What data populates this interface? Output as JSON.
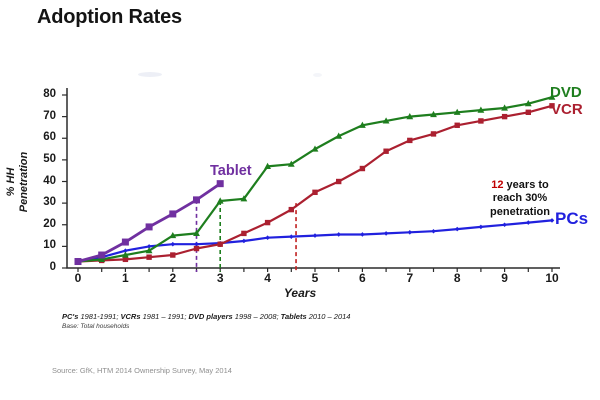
{
  "title": "Adoption Rates",
  "colors": {
    "dvd": "#1e7e1e",
    "vcr": "#ab2030",
    "tablet": "#7030a0",
    "pcs": "#2121de",
    "annotation_highlight": "#c00000",
    "axis": "#2b2b2b",
    "source_text": "#8f8f8f"
  },
  "chart_data": {
    "type": "line",
    "title": "Adoption Rates",
    "xlabel": "Years",
    "ylabel": "% HH Penetration",
    "ylabel_line1": "% HH",
    "ylabel_line2": "Penetration",
    "xlim": [
      0,
      10
    ],
    "ylim": [
      0,
      80
    ],
    "grid": false,
    "x_tick_labels": [
      "0",
      "1",
      "2",
      "3",
      "4",
      "5",
      "6",
      "7",
      "8",
      "9",
      "10"
    ],
    "y_tick_labels": [
      "0",
      "10",
      "20",
      "30",
      "40",
      "50",
      "60",
      "70",
      "80"
    ],
    "series_labels": {
      "tablet": "Tablet",
      "dvd": "DVD",
      "vcr": "VCR",
      "pcs": "PCs"
    },
    "series": [
      {
        "name": "PCs",
        "color": "#2121de",
        "marker": "diamond",
        "line_width": 2.2,
        "marker_size": 4.6,
        "x": [
          0,
          0.5,
          1,
          1.5,
          2,
          2.5,
          3,
          3.5,
          4,
          4.5,
          5,
          5.5,
          6,
          6.5,
          7,
          7.5,
          8,
          8.5,
          9,
          9.5,
          10
        ],
        "values": [
          3,
          5,
          8,
          10,
          11,
          11,
          11.5,
          12.5,
          14,
          14.5,
          15,
          15.5,
          15.5,
          16,
          16.5,
          17,
          18,
          19,
          20,
          21,
          22
        ]
      },
      {
        "name": "VCR",
        "color": "#ab2030",
        "marker": "square",
        "line_width": 2.2,
        "marker_size": 5.4,
        "x": [
          0,
          0.5,
          1,
          1.5,
          2,
          2.5,
          3,
          3.5,
          4,
          4.5,
          5,
          5.5,
          6,
          6.5,
          7,
          7.5,
          8,
          8.5,
          9,
          9.5,
          10
        ],
        "values": [
          3,
          3.5,
          4,
          5,
          6,
          9,
          11,
          16,
          21,
          27,
          35,
          40,
          46,
          54,
          59,
          62,
          66,
          68,
          70,
          72,
          75
        ]
      },
      {
        "name": "DVD",
        "color": "#1e7e1e",
        "marker": "triangle",
        "line_width": 2.2,
        "marker_size": 6,
        "x": [
          0,
          0.5,
          1,
          1.5,
          2,
          2.5,
          3,
          3.5,
          4,
          4.5,
          5,
          5.5,
          6,
          6.5,
          7,
          7.5,
          8,
          8.5,
          9,
          9.5,
          10
        ],
        "values": [
          3,
          4,
          6,
          8,
          15,
          16,
          31,
          32,
          47,
          48,
          55,
          61,
          66,
          68,
          70,
          71,
          72,
          73,
          74,
          76,
          79
        ]
      },
      {
        "name": "Tablet",
        "color": "#7030a0",
        "marker": "square",
        "line_width": 2.8,
        "marker_size": 7,
        "x": [
          0,
          0.5,
          1,
          1.5,
          2,
          2.5,
          3
        ],
        "values": [
          3,
          6,
          12,
          19,
          25,
          31.5,
          39
        ]
      }
    ],
    "reference_lines": [
      {
        "series": "Tablet",
        "x": 2.5,
        "y_top": 31.5,
        "color": "#7030a0"
      },
      {
        "series": "DVD",
        "x": 3.0,
        "y_top": 31,
        "color": "#1e7e1e"
      },
      {
        "series": "VCR",
        "x": 4.6,
        "y_top": 30,
        "color": "#c02020"
      }
    ]
  },
  "annotation": {
    "highlight": "12",
    "line1_rest": " years to",
    "line2": "reach 30%",
    "line3": "penetration"
  },
  "footnote": {
    "segments": [
      {
        "text": "PC's ",
        "bold": true
      },
      {
        "text": "1981-1991; ",
        "bold": false
      },
      {
        "text": "VCRs ",
        "bold": true
      },
      {
        "text": "1981 – 1991; ",
        "bold": false
      },
      {
        "text": "DVD players ",
        "bold": true
      },
      {
        "text": "1998 – 2008; ",
        "bold": false
      },
      {
        "text": "Tablets ",
        "bold": true
      },
      {
        "text": "2010 – 2014",
        "bold": false
      }
    ],
    "base": "Base: Total households"
  },
  "source": "Source: GfK, HTM 2014 Ownership Survey, May 2014"
}
